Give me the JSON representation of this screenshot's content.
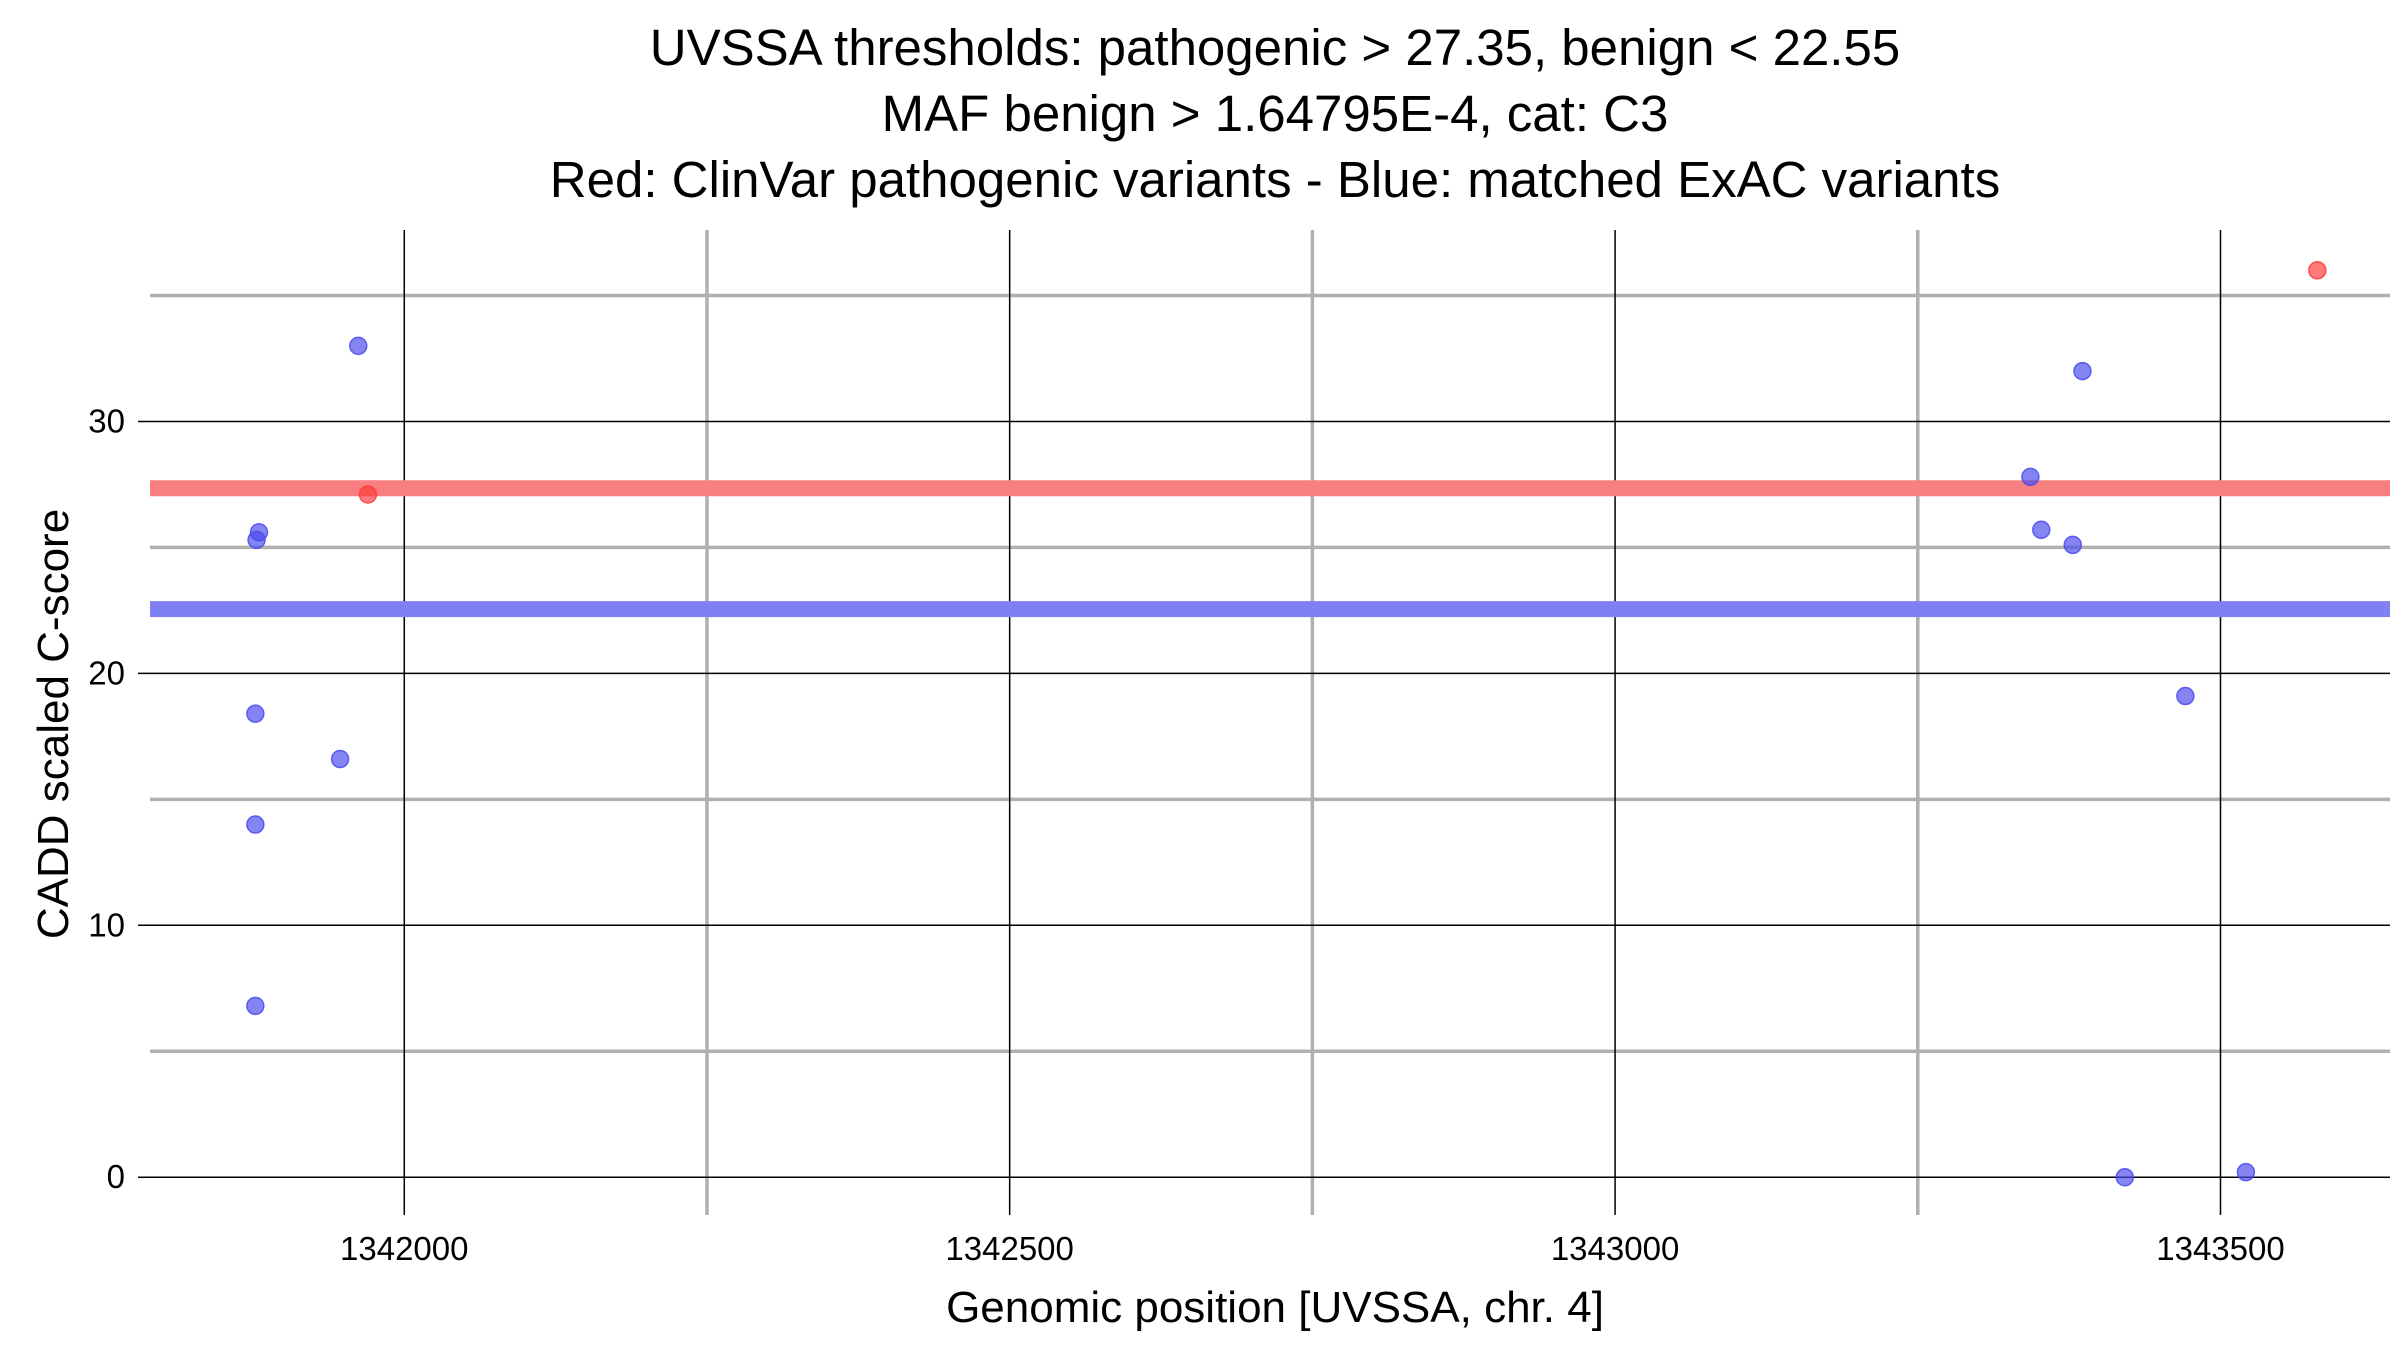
{
  "chart_data": {
    "type": "scatter",
    "title_lines": [
      "UVSSA thresholds: pathogenic > 27.35, benign < 22.55",
      "MAF benign > 1.64795E-4, cat: C3",
      "Red: ClinVar pathogenic variants - Blue: matched ExAC variants"
    ],
    "xlabel": "Genomic position [UVSSA, chr. 4]",
    "ylabel": "CADD scaled C-score",
    "xlim": [
      1341790,
      1343640
    ],
    "ylim": [
      -1.5,
      37.6
    ],
    "x_ticks": [
      1342000,
      1342500,
      1343000,
      1343500
    ],
    "y_ticks": [
      0,
      10,
      20,
      30
    ],
    "x_minor_gridlines": [
      1342250,
      1342750,
      1343250
    ],
    "y_minor_gridlines": [
      5,
      15,
      25,
      35
    ],
    "grid": true,
    "thresholds": [
      {
        "name": "pathogenic",
        "value": 27.35,
        "color": "#f87f7f"
      },
      {
        "name": "benign",
        "value": 22.55,
        "color": "#8080f5"
      }
    ],
    "series": [
      {
        "color": "#ff3b3b",
        "points": [
          {
            "x": 1341970,
            "y": 27.1
          },
          {
            "x": 1343580,
            "y": 36.0
          }
        ]
      },
      {
        "color": "#4a4aee",
        "points": [
          {
            "x": 1341962,
            "y": 33.0
          },
          {
            "x": 1341880,
            "y": 25.6
          },
          {
            "x": 1341878,
            "y": 25.3
          },
          {
            "x": 1341877,
            "y": 18.4
          },
          {
            "x": 1341947,
            "y": 16.6
          },
          {
            "x": 1341877,
            "y": 14.0
          },
          {
            "x": 1341877,
            "y": 6.8
          },
          {
            "x": 1343386,
            "y": 32.0
          },
          {
            "x": 1343343,
            "y": 27.8
          },
          {
            "x": 1343352,
            "y": 25.7
          },
          {
            "x": 1343378,
            "y": 25.1
          },
          {
            "x": 1343471,
            "y": 19.1
          },
          {
            "x": 1343421,
            "y": 0.0
          },
          {
            "x": 1343521,
            "y": 0.2
          }
        ]
      }
    ]
  }
}
